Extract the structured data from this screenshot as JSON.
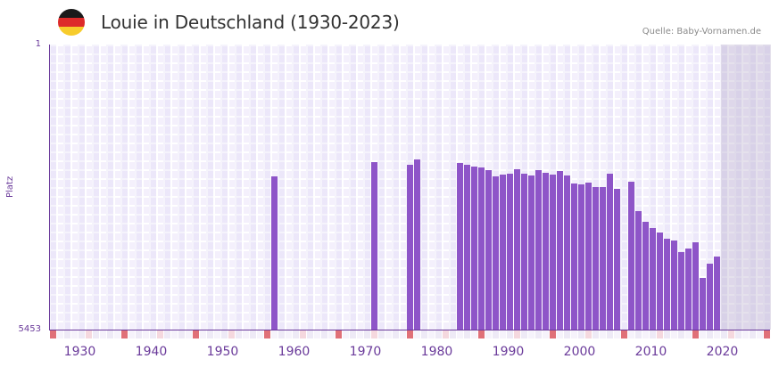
{
  "header": {
    "title": "Louie in Deutschland (1930-2023)",
    "source": "Quelle: Baby-Vornamen.de",
    "flag_icon": "germany-flag-icon",
    "flag_colors": [
      "#1a1a1a",
      "#dd2a2a",
      "#f7cc2c"
    ]
  },
  "axis": {
    "y_title": "Platz",
    "y_top_label": "1",
    "y_bottom_label": "5453",
    "x_ticks": [
      "1930",
      "1940",
      "1950",
      "1960",
      "1970",
      "1980",
      "1990",
      "2000",
      "2010",
      "2020"
    ]
  },
  "colors": {
    "bar": "#8e55c8",
    "axis": "#6a3a9a",
    "decade_mark": "#e07078",
    "half_decade_mark": "#f5d8de",
    "future_shade": "#e2dcec"
  },
  "chart_data": {
    "type": "bar",
    "title": "Louie in Deutschland (1930-2023)",
    "xlabel": "",
    "ylabel": "Platz",
    "ylim": [
      5453,
      1
    ],
    "y_inverted": true,
    "x_range": [
      1928,
      2028
    ],
    "grid": true,
    "shaded_region_years": [
      2022,
      2028
    ],
    "categories": [
      1959,
      1973,
      1978,
      1979,
      1985,
      1986,
      1987,
      1988,
      1989,
      1990,
      1991,
      1992,
      1993,
      1994,
      1995,
      1996,
      1997,
      1998,
      1999,
      2000,
      2001,
      2002,
      2003,
      2004,
      2005,
      2006,
      2007,
      2009,
      2010,
      2011,
      2012,
      2013,
      2014,
      2015,
      2016,
      2017,
      2018,
      2019,
      2020,
      2021
    ],
    "values": [
      2522,
      2250,
      2301,
      2199,
      2267,
      2301,
      2335,
      2352,
      2403,
      2522,
      2488,
      2471,
      2386,
      2471,
      2505,
      2403,
      2454,
      2488,
      2420,
      2505,
      2659,
      2676,
      2642,
      2727,
      2727,
      2471,
      2761,
      2625,
      3187,
      3392,
      3511,
      3596,
      3716,
      3750,
      3971,
      3903,
      3784,
      4466,
      4193,
      4057
    ]
  }
}
